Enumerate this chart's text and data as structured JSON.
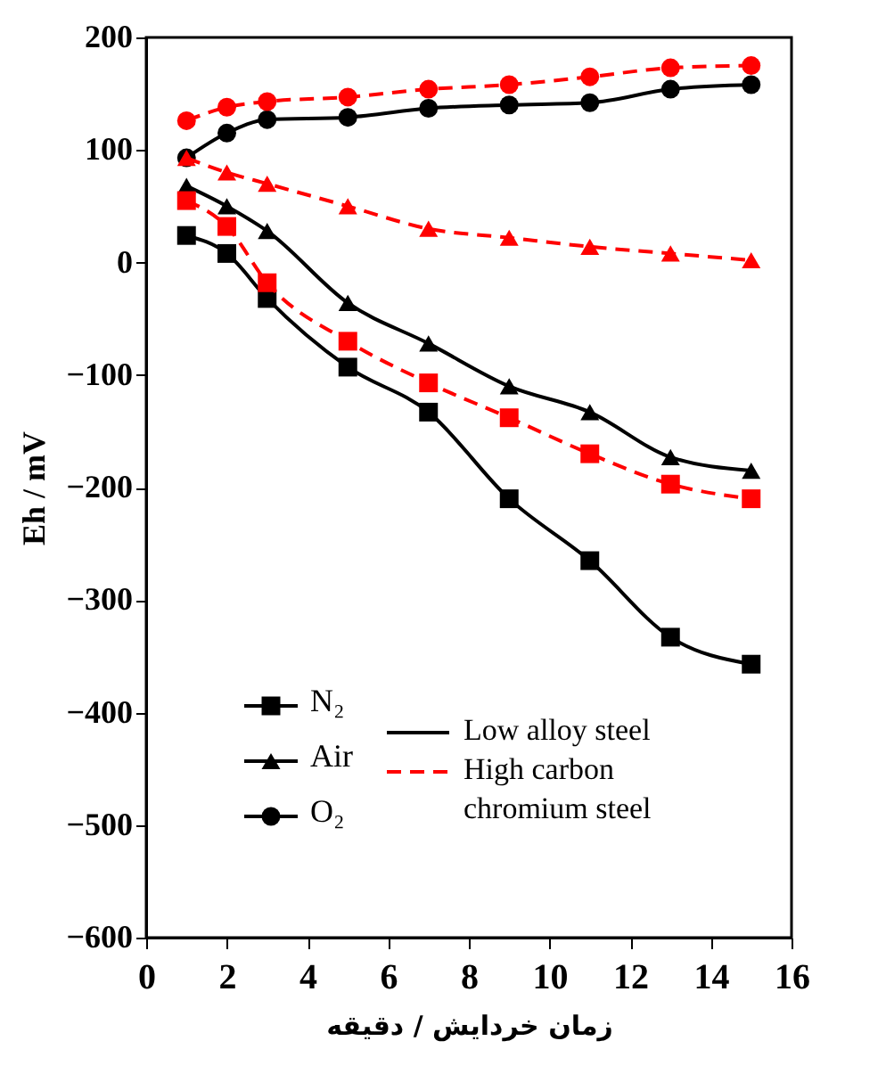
{
  "chart_data": {
    "type": "line",
    "xlabel": "زمان خردایش / دقیقه",
    "ylabel": "Eh / mV",
    "x": [
      1,
      2,
      3,
      5,
      7,
      9,
      11,
      13,
      15
    ],
    "xlim": [
      0,
      16
    ],
    "xticks": [
      0,
      2,
      4,
      6,
      8,
      10,
      12,
      14,
      16
    ],
    "ylim": [
      -600,
      200
    ],
    "yticks": [
      -600,
      -500,
      -400,
      -300,
      -200,
      -100,
      0,
      100,
      200
    ],
    "grid": false,
    "legend": "bottom left",
    "annotations": [
      "Low alloy steel",
      "High carbon chromium steel"
    ],
    "series": [
      {
        "name": "N₂",
        "color": "#000000",
        "marker": "square",
        "line_style": "solid",
        "values": [
          24,
          8,
          -32,
          -93,
          -133,
          -210,
          -265,
          -333,
          -357
        ]
      },
      {
        "name": "Air",
        "color": "#000000",
        "marker": "triangle",
        "line_style": "solid",
        "values": [
          68,
          50,
          28,
          -36,
          -72,
          -110,
          -133,
          -173,
          -185
        ]
      },
      {
        "name": "O₂",
        "color": "#000000",
        "marker": "circle",
        "line_style": "solid",
        "values": [
          93,
          115,
          127,
          129,
          137,
          140,
          142,
          154,
          158
        ]
      },
      {
        "color": "#ff0000",
        "marker": "square",
        "line_style": "dashed",
        "values": [
          55,
          32,
          -18,
          -70,
          -107,
          -138,
          -170,
          -197,
          -210
        ]
      },
      {
        "color": "#ff0000",
        "marker": "triangle",
        "line_style": "dashed",
        "values": [
          93,
          80,
          70,
          50,
          30,
          22,
          14,
          8,
          2
        ]
      },
      {
        "color": "#ff0000",
        "marker": "circle",
        "line_style": "dashed",
        "values": [
          126,
          138,
          143,
          147,
          154,
          158,
          165,
          173,
          175
        ]
      }
    ]
  }
}
